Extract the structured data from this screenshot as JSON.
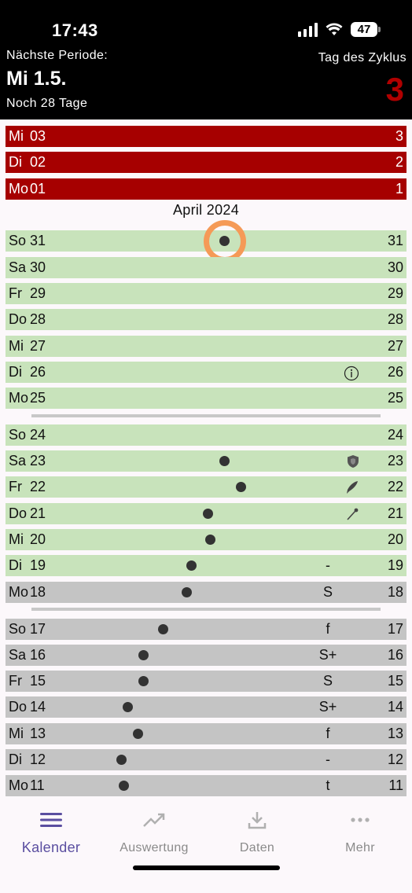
{
  "status": {
    "time": "17:43",
    "battery": "47"
  },
  "header": {
    "next_label": "Nächste Periode:",
    "next_date": "Mi 1.5.",
    "days_left": "Noch 28 Tage",
    "cycle_label": "Tag des Zyklus",
    "cycle_day": "3"
  },
  "colors": {
    "period": "#a60000",
    "fertile": "#c8e3bb",
    "infertile": "#c4c4c4",
    "highlight": "#f59a57",
    "accent": "#5a4ea0"
  },
  "month_label": "April 2024",
  "rows": [
    {
      "wd": "Mi",
      "dn": "03",
      "num": "3",
      "color": "red"
    },
    {
      "wd": "Di",
      "dn": "02",
      "num": "2",
      "color": "red"
    },
    {
      "wd": "Mo",
      "dn": "01",
      "num": "1",
      "color": "red"
    },
    {
      "wd": "So",
      "dn": "31",
      "num": "31",
      "color": "green",
      "dot": 0.547,
      "ring": true
    },
    {
      "wd": "Sa",
      "dn": "30",
      "num": "30",
      "color": "green"
    },
    {
      "wd": "Fr",
      "dn": "29",
      "num": "29",
      "color": "green"
    },
    {
      "wd": "Do",
      "dn": "28",
      "num": "28",
      "color": "green"
    },
    {
      "wd": "Mi",
      "dn": "27",
      "num": "27",
      "color": "green"
    },
    {
      "wd": "Di",
      "dn": "26",
      "num": "26",
      "color": "green",
      "icon": "info-icon"
    },
    {
      "wd": "Mo",
      "dn": "25",
      "num": "25",
      "color": "green"
    },
    {
      "wd": "So",
      "dn": "24",
      "num": "24",
      "color": "green"
    },
    {
      "wd": "Sa",
      "dn": "23",
      "num": "23",
      "color": "green",
      "dot": 0.547,
      "icon": "shield-icon"
    },
    {
      "wd": "Fr",
      "dn": "22",
      "num": "22",
      "color": "green",
      "dot": 0.587,
      "icon": "feather-icon"
    },
    {
      "wd": "Do",
      "dn": "21",
      "num": "21",
      "color": "green",
      "dot": 0.505,
      "icon": "brush-icon"
    },
    {
      "wd": "Mi",
      "dn": "20",
      "num": "20",
      "color": "green",
      "dot": 0.51
    },
    {
      "wd": "Di",
      "dn": "19",
      "num": "19",
      "color": "green",
      "dot": 0.463,
      "mark": "-"
    },
    {
      "wd": "Mo",
      "dn": "18",
      "num": "18",
      "color": "gray",
      "dot": 0.452,
      "mark": "S"
    },
    {
      "wd": "So",
      "dn": "17",
      "num": "17",
      "color": "gray",
      "dot": 0.394,
      "mark": "f"
    },
    {
      "wd": "Sa",
      "dn": "16",
      "num": "16",
      "color": "gray",
      "dot": 0.345,
      "mark": "S+"
    },
    {
      "wd": "Fr",
      "dn": "15",
      "num": "15",
      "color": "gray",
      "dot": 0.345,
      "mark": "S"
    },
    {
      "wd": "Do",
      "dn": "14",
      "num": "14",
      "color": "gray",
      "dot": 0.305,
      "mark": "S+"
    },
    {
      "wd": "Mi",
      "dn": "13",
      "num": "13",
      "color": "gray",
      "dot": 0.33,
      "mark": "f"
    },
    {
      "wd": "Di",
      "dn": "12",
      "num": "12",
      "color": "gray",
      "dot": 0.29,
      "mark": "-"
    },
    {
      "wd": "Mo",
      "dn": "11",
      "num": "11",
      "color": "gray",
      "dot": 0.295,
      "mark": "t"
    }
  ],
  "tabs": [
    {
      "label": "Kalender",
      "icon": "menu-icon",
      "active": true
    },
    {
      "label": "Auswertung",
      "icon": "trend-icon",
      "active": false
    },
    {
      "label": "Daten",
      "icon": "download-icon",
      "active": false
    },
    {
      "label": "Mehr",
      "icon": "more-icon",
      "active": false
    }
  ]
}
